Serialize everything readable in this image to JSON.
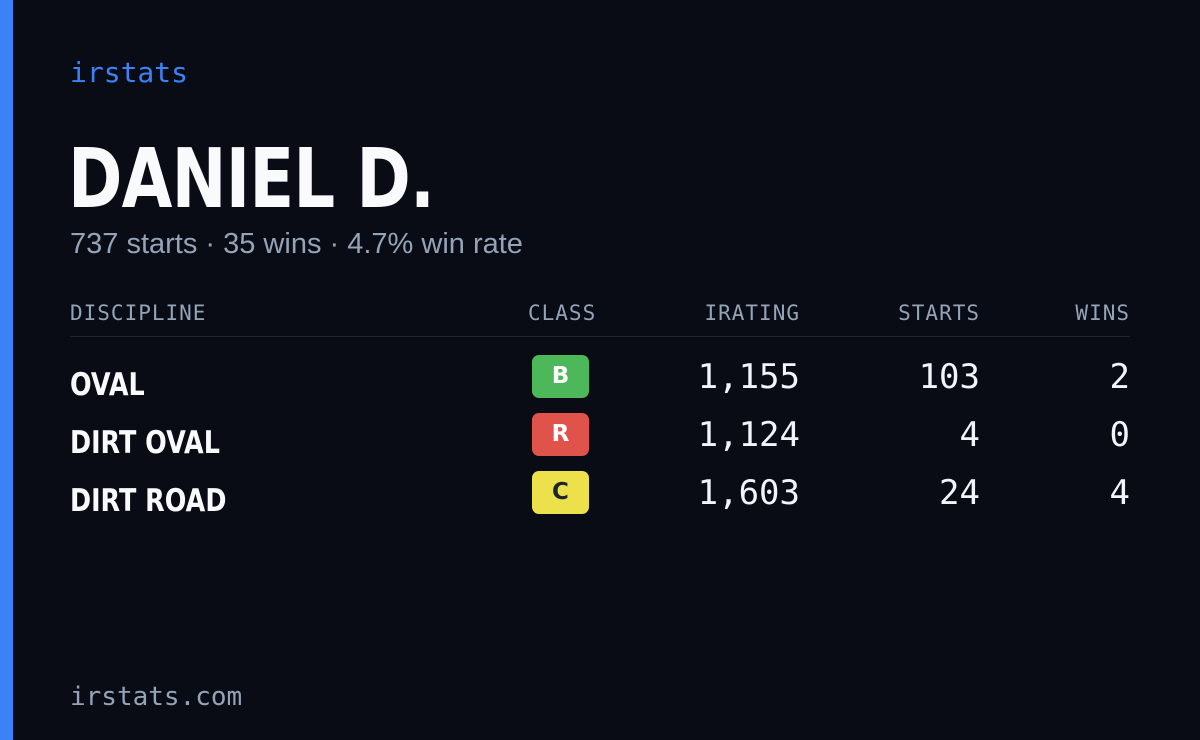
{
  "brand": "irstats",
  "driver": {
    "name": "DANIEL D.",
    "summary": "737 starts · 35 wins · 4.7% win rate"
  },
  "table": {
    "headers": {
      "discipline": "DISCIPLINE",
      "class": "CLASS",
      "irating": "IRATING",
      "starts": "STARTS",
      "wins": "WINS"
    },
    "rows": [
      {
        "discipline": "OVAL",
        "class": "B",
        "class_color": "#4cb85a",
        "class_text_color": "#ffffff",
        "irating": "1,155",
        "starts": "103",
        "wins": "2"
      },
      {
        "discipline": "DIRT OVAL",
        "class": "R",
        "class_color": "#e0534a",
        "class_text_color": "#ffffff",
        "irating": "1,124",
        "starts": "4",
        "wins": "0"
      },
      {
        "discipline": "DIRT ROAD",
        "class": "C",
        "class_color": "#ede14b",
        "class_text_color": "#1f2330",
        "irating": "1,603",
        "starts": "24",
        "wins": "4"
      }
    ]
  },
  "footer": "irstats.com",
  "colors": {
    "background": "#090c14",
    "accent": "#3b82f6",
    "muted_text": "#94a3b8",
    "primary_text": "#f8fafc"
  }
}
